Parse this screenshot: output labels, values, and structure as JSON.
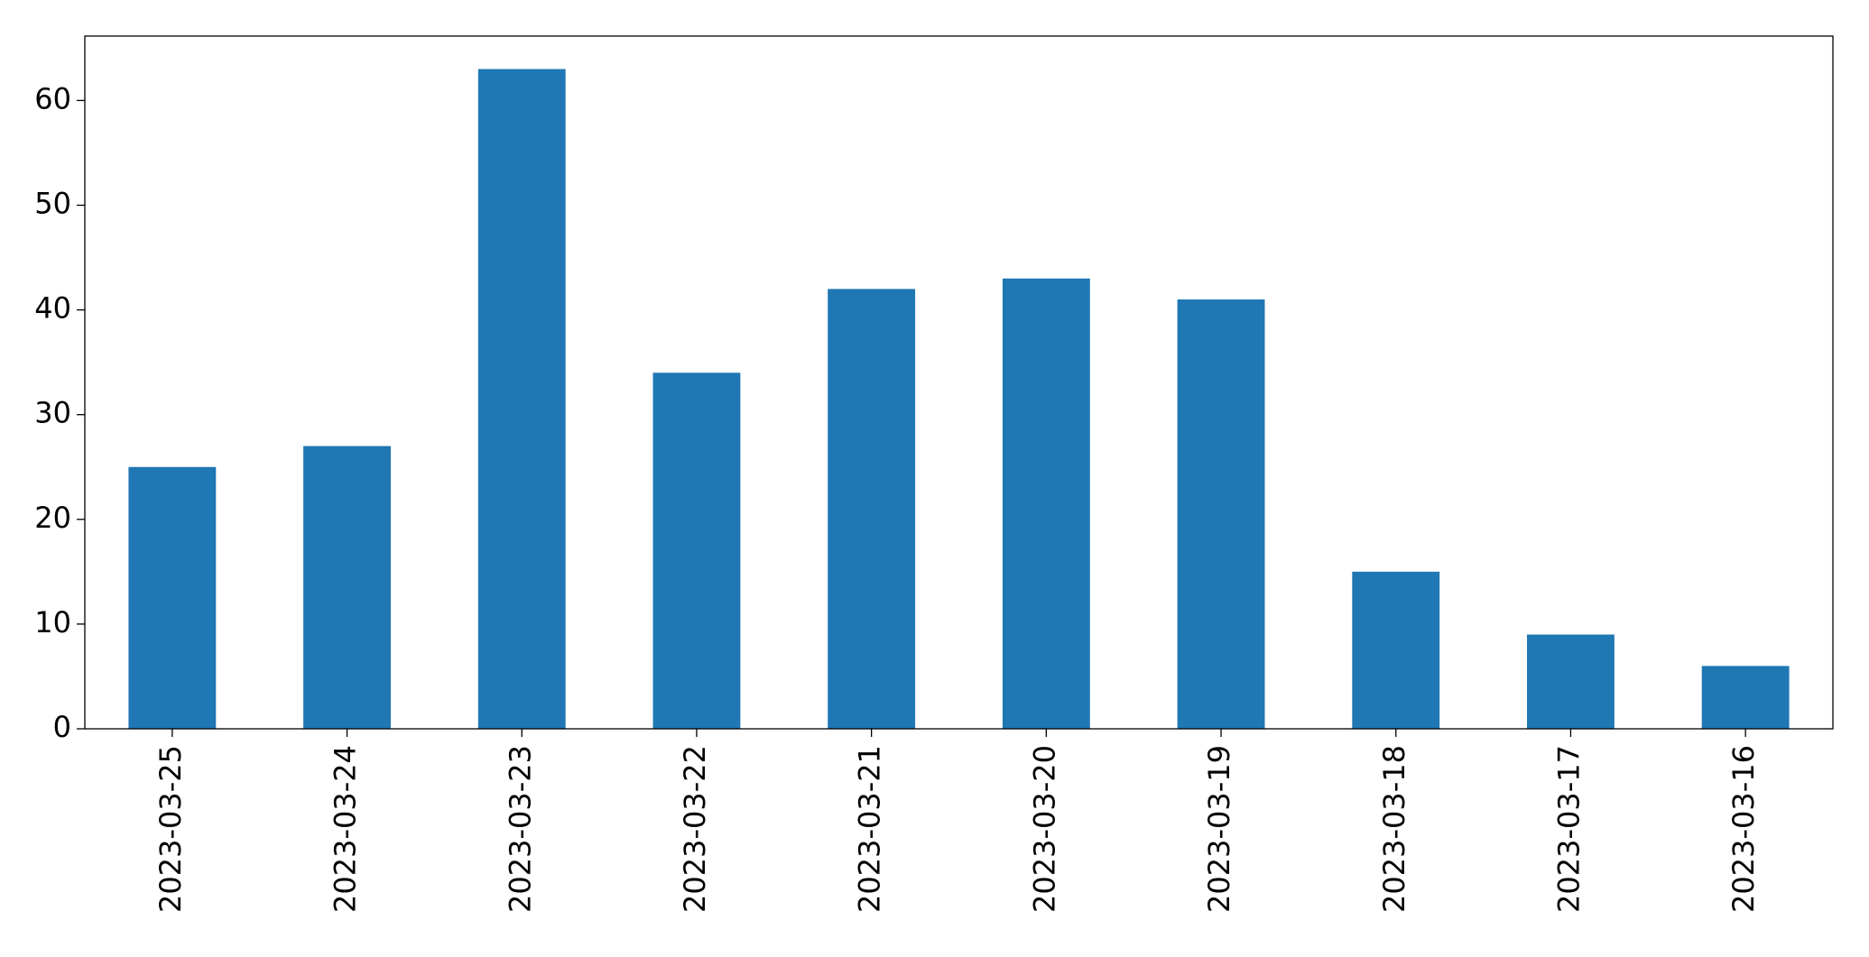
{
  "chart_data": {
    "type": "bar",
    "categories": [
      "2023-03-25",
      "2023-03-24",
      "2023-03-23",
      "2023-03-22",
      "2023-03-21",
      "2023-03-20",
      "2023-03-19",
      "2023-03-18",
      "2023-03-17",
      "2023-03-16"
    ],
    "values": [
      25,
      27,
      63,
      34,
      42,
      43,
      41,
      15,
      9,
      6
    ],
    "color": "#1f77b4",
    "ylim": [
      0,
      66.15
    ],
    "yticks": [
      0,
      10,
      20,
      30,
      40,
      50,
      60
    ],
    "grid": false
  }
}
